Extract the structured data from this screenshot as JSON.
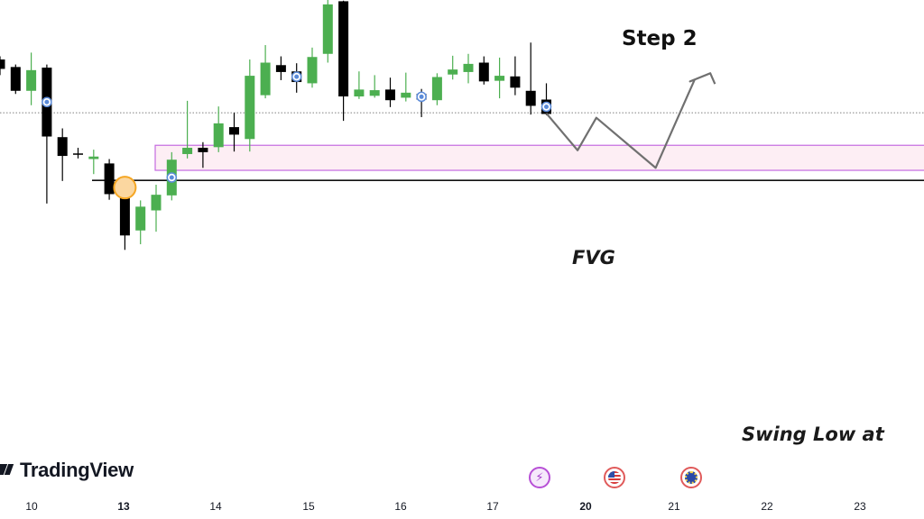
{
  "annotations": {
    "step_title": "Step 2",
    "fvg_label": "FVG",
    "swing_label": "Swing Low at"
  },
  "branding": {
    "name": "TradingView",
    "icon": "tradingview-logo-icon"
  },
  "events": [
    {
      "icon": "lightning-bolt-icon",
      "color": "#b74fd6"
    },
    {
      "icon": "us-flag-icon",
      "color": "#e05a5a"
    },
    {
      "icon": "eu-flag-icon",
      "color": "#e05a5a"
    }
  ],
  "colors": {
    "bull": "#4caf50",
    "bear": "#000000",
    "fvg_fill": "#fdeef4",
    "fvg_border": "#c46be0",
    "projection": "#707070",
    "swing_marker": "#f5a623",
    "dot_marker": "#5b8bd9"
  },
  "chart_data": {
    "type": "candlestick",
    "x_axis_ticks": [
      {
        "label": "10",
        "bold": false
      },
      {
        "label": "13",
        "bold": true
      },
      {
        "label": "14",
        "bold": false
      },
      {
        "label": "15",
        "bold": false
      },
      {
        "label": "16",
        "bold": false
      },
      {
        "label": "17",
        "bold": false
      },
      {
        "label": "20",
        "bold": true
      },
      {
        "label": "21",
        "bold": false
      },
      {
        "label": "22",
        "bold": false
      },
      {
        "label": "23",
        "bold": false
      }
    ],
    "y_range": [
      0,
      600
    ],
    "candles": [
      {
        "open": 505,
        "close": 490,
        "high": 510,
        "low": 480
      },
      {
        "open": 493,
        "close": 455,
        "high": 497,
        "low": 450
      },
      {
        "open": 455,
        "close": 488,
        "high": 516,
        "low": 432
      },
      {
        "open": 492,
        "close": 382,
        "high": 497,
        "low": 275
      },
      {
        "open": 381,
        "close": 351,
        "high": 395,
        "low": 311
      },
      {
        "open": 355,
        "close": 353,
        "high": 364,
        "low": 347
      },
      {
        "open": 346,
        "close": 350,
        "high": 361,
        "low": 322
      },
      {
        "open": 339,
        "close": 290,
        "high": 346,
        "low": 281
      },
      {
        "open": 290,
        "close": 224,
        "high": 296,
        "low": 201
      },
      {
        "open": 232,
        "close": 270,
        "high": 280,
        "low": 210
      },
      {
        "open": 264,
        "close": 289,
        "high": 305,
        "low": 230
      },
      {
        "open": 288,
        "close": 345,
        "high": 357,
        "low": 280
      },
      {
        "open": 354,
        "close": 364,
        "high": 439,
        "low": 347
      },
      {
        "open": 364,
        "close": 357,
        "high": 373,
        "low": 332
      },
      {
        "open": 365,
        "close": 403,
        "high": 430,
        "low": 357
      },
      {
        "open": 397,
        "close": 385,
        "high": 420,
        "low": 358
      },
      {
        "open": 378,
        "close": 479,
        "high": 505,
        "low": 358
      },
      {
        "open": 448,
        "close": 500,
        "high": 528,
        "low": 443
      },
      {
        "open": 496,
        "close": 485,
        "high": 510,
        "low": 472
      },
      {
        "open": 486,
        "close": 469,
        "high": 499,
        "low": 452
      },
      {
        "open": 467,
        "close": 509,
        "high": 524,
        "low": 460
      },
      {
        "open": 514,
        "close": 593,
        "high": 600,
        "low": 500
      },
      {
        "open": 598,
        "close": 446,
        "high": 599,
        "low": 407
      },
      {
        "open": 446,
        "close": 457,
        "high": 486,
        "low": 442
      },
      {
        "open": 447,
        "close": 456,
        "high": 480,
        "low": 444
      },
      {
        "open": 457,
        "close": 440,
        "high": 476,
        "low": 429
      },
      {
        "open": 444,
        "close": 452,
        "high": 484,
        "low": 438
      },
      {
        "open": 450,
        "close": 441,
        "high": 458,
        "low": 413
      },
      {
        "open": 440,
        "close": 477,
        "high": 483,
        "low": 432
      },
      {
        "open": 481,
        "close": 489,
        "high": 511,
        "low": 473
      },
      {
        "open": 485,
        "close": 498,
        "high": 514,
        "low": 467
      },
      {
        "open": 500,
        "close": 470,
        "high": 510,
        "low": 465
      },
      {
        "open": 471,
        "close": 479,
        "high": 508,
        "low": 443
      },
      {
        "open": 478,
        "close": 460,
        "high": 510,
        "low": 448
      },
      {
        "open": 455,
        "close": 431,
        "high": 532,
        "low": 417
      },
      {
        "open": 441,
        "close": 418,
        "high": 467,
        "low": 416
      }
    ],
    "reference_line": 420,
    "swing_low_level": 312,
    "fvg_zone": {
      "top": 368,
      "bottom": 328,
      "start_index": 10
    },
    "projection_path": [
      {
        "index": 35.0,
        "price": 419
      },
      {
        "index": 37.0,
        "price": 360
      },
      {
        "index": 38.2,
        "price": 412
      },
      {
        "index": 42.0,
        "price": 332
      },
      {
        "index": 44.5,
        "price": 473
      },
      {
        "index": 44.2,
        "price": 470
      },
      {
        "index": 45.5,
        "price": 483
      },
      {
        "index": 45.8,
        "price": 466
      }
    ],
    "dot_markers": [
      3,
      11,
      19,
      27,
      35
    ],
    "swing_low_marker_index": 8
  }
}
